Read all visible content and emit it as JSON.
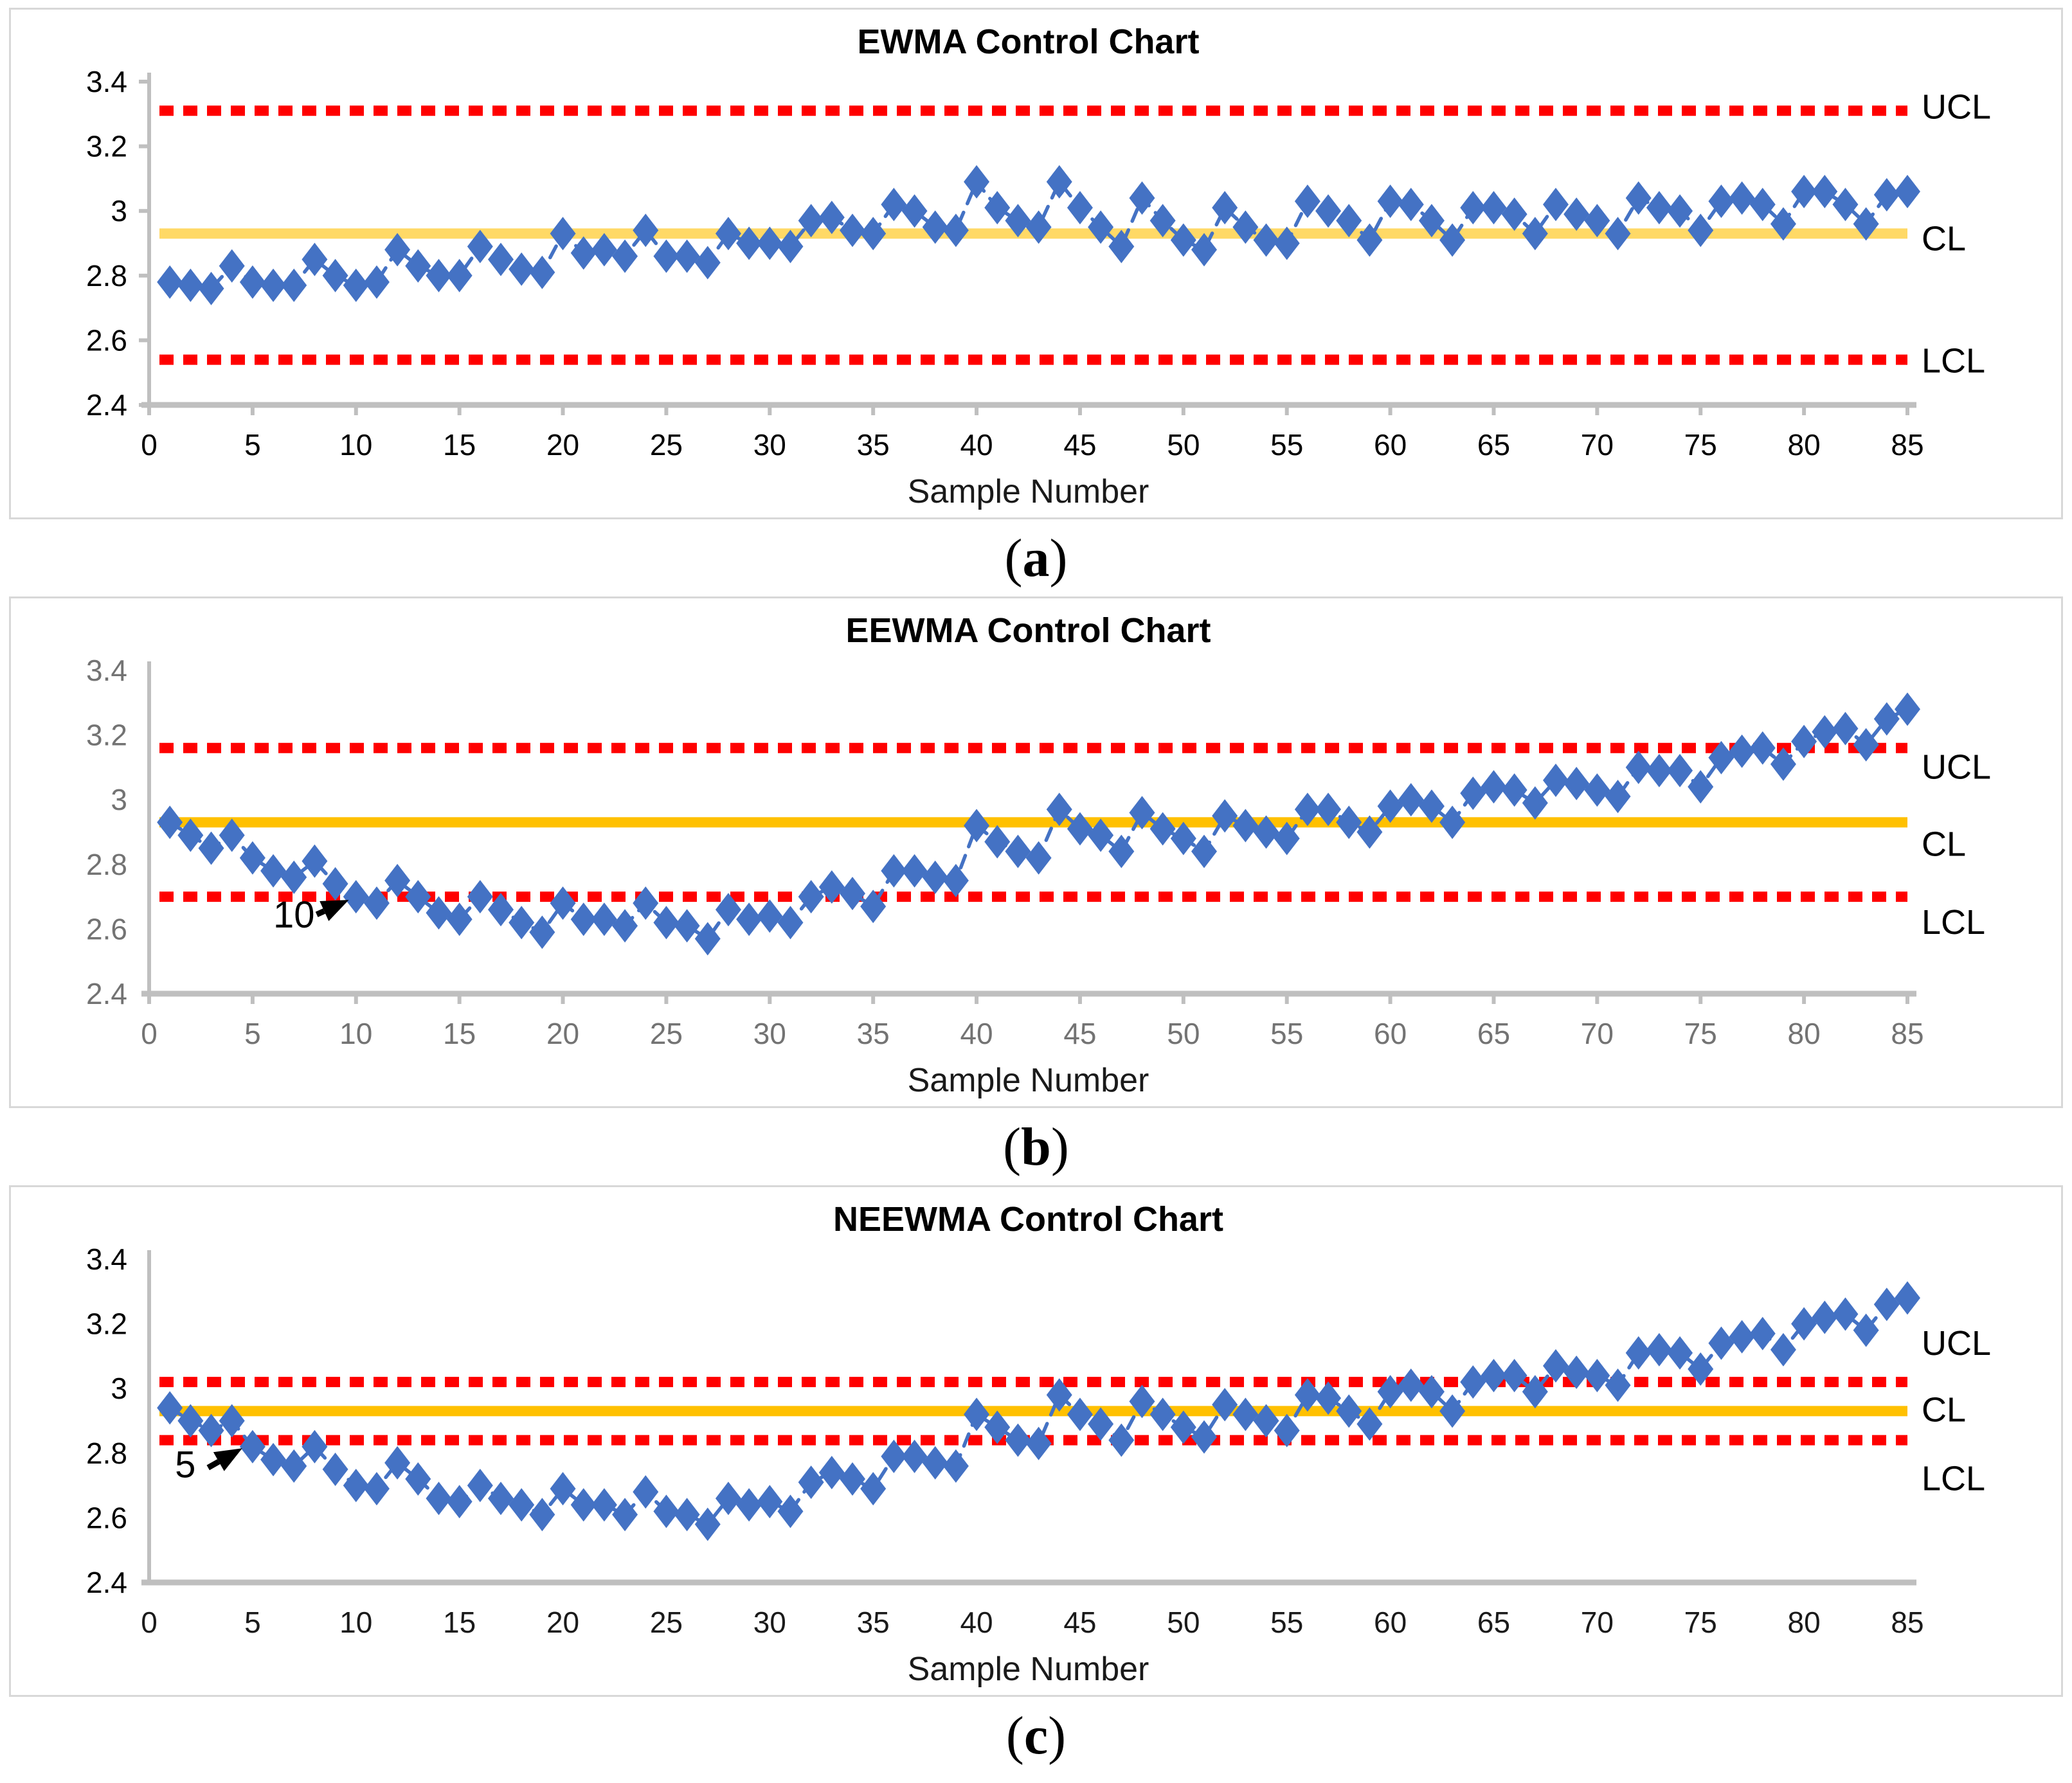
{
  "captions": [
    {
      "open": "(",
      "letter": "a",
      "close": ")"
    },
    {
      "open": "(",
      "letter": "b",
      "close": ")"
    },
    {
      "open": "(",
      "letter": "c",
      "close": ")"
    }
  ],
  "colors": {
    "series_blue": "#4472C4",
    "control_red": "#FF0000",
    "axis_gray": "#BFBFBF",
    "panel_border": "#D8D8D8"
  },
  "chart_data": [
    {
      "type": "line",
      "title": "EWMA Control Chart",
      "xlabel": "Sample Number",
      "ylim": [
        2.4,
        3.4
      ],
      "xlim": [
        0,
        85
      ],
      "grid": false,
      "legend": "none",
      "y_tick_labels": [
        "3.4",
        "3.2",
        "3",
        "2.8",
        "2.6",
        "2.4"
      ],
      "x_tick_labels": [
        "0",
        "5",
        "10",
        "15",
        "20",
        "25",
        "30",
        "35",
        "40",
        "45",
        "50",
        "55",
        "60",
        "65",
        "70",
        "75",
        "80",
        "85"
      ],
      "x_tick_marks": true,
      "y_tick_marks": true,
      "tick_color_y": "#000000",
      "tick_color_x": "#000000",
      "x_tick_font": "sans",
      "label_color": "#1a1a1a",
      "series": [
        {
          "name": "EWMA",
          "marker": "diamond",
          "color": "#4472C4",
          "x_start": 1,
          "x_step": 1,
          "values": [
            2.78,
            2.77,
            2.76,
            2.83,
            2.78,
            2.77,
            2.77,
            2.85,
            2.8,
            2.77,
            2.78,
            2.88,
            2.83,
            2.8,
            2.8,
            2.89,
            2.85,
            2.82,
            2.81,
            2.93,
            2.87,
            2.88,
            2.86,
            2.94,
            2.86,
            2.86,
            2.84,
            2.93,
            2.9,
            2.9,
            2.89,
            2.97,
            2.98,
            2.94,
            2.93,
            3.02,
            3.0,
            2.95,
            2.94,
            3.09,
            3.01,
            2.97,
            2.95,
            3.09,
            3.01,
            2.95,
            2.89,
            3.04,
            2.97,
            2.91,
            2.88,
            3.01,
            2.95,
            2.91,
            2.9,
            3.03,
            3.0,
            2.97,
            2.91,
            3.03,
            3.02,
            2.97,
            2.91,
            3.01,
            3.01,
            2.99,
            2.93,
            3.02,
            2.99,
            2.97,
            2.93,
            3.04,
            3.01,
            3.0,
            2.94,
            3.03,
            3.04,
            3.02,
            2.96,
            3.06,
            3.06,
            3.02,
            2.96,
            3.05,
            3.06
          ]
        }
      ],
      "control_lines": [
        {
          "label": "UCL",
          "value": 3.31,
          "style": "dotted",
          "color": "#FF0000",
          "label_dy": 12
        },
        {
          "label": "CL",
          "value": 2.93,
          "style": "solid",
          "color": "#FFD966",
          "label_dy": 26
        },
        {
          "label": "LCL",
          "value": 2.54,
          "style": "dotted",
          "color": "#FF0000",
          "label_dy": 20
        }
      ],
      "annotation": null
    },
    {
      "type": "line",
      "title": "EEWMA Control Chart",
      "xlabel": "Sample Number",
      "ylim": [
        2.4,
        3.4
      ],
      "xlim": [
        0,
        85
      ],
      "grid": false,
      "legend": "none",
      "y_tick_labels": [
        "3.4",
        "3.2",
        "3",
        "2.8",
        "2.6",
        "2.4"
      ],
      "x_tick_labels": [
        "0",
        "5",
        "10",
        "15",
        "20",
        "25",
        "30",
        "35",
        "40",
        "45",
        "50",
        "55",
        "60",
        "65",
        "70",
        "75",
        "80",
        "85"
      ],
      "x_tick_marks": true,
      "y_tick_marks": false,
      "tick_color_y": "#737373",
      "tick_color_x": "#737373",
      "x_tick_font": "sans",
      "label_color": "#1a1a1a",
      "series": [
        {
          "name": "EEWMA",
          "marker": "diamond",
          "color": "#4472C4",
          "x_start": 1,
          "x_step": 1,
          "values": [
            2.93,
            2.89,
            2.85,
            2.89,
            2.82,
            2.78,
            2.76,
            2.81,
            2.74,
            2.7,
            2.68,
            2.75,
            2.7,
            2.65,
            2.63,
            2.7,
            2.66,
            2.62,
            2.59,
            2.68,
            2.63,
            2.63,
            2.61,
            2.68,
            2.62,
            2.61,
            2.57,
            2.66,
            2.63,
            2.64,
            2.62,
            2.7,
            2.73,
            2.71,
            2.67,
            2.78,
            2.78,
            2.76,
            2.75,
            2.92,
            2.87,
            2.84,
            2.82,
            2.97,
            2.91,
            2.89,
            2.84,
            2.96,
            2.91,
            2.88,
            2.84,
            2.95,
            2.92,
            2.9,
            2.88,
            2.97,
            2.97,
            2.93,
            2.9,
            2.98,
            3.0,
            2.98,
            2.93,
            3.02,
            3.04,
            3.03,
            2.99,
            3.06,
            3.05,
            3.03,
            3.01,
            3.1,
            3.09,
            3.09,
            3.04,
            3.13,
            3.15,
            3.16,
            3.11,
            3.18,
            3.21,
            3.22,
            3.17,
            3.25,
            3.28
          ]
        }
      ],
      "control_lines": [
        {
          "label": "UCL",
          "value": 3.16,
          "style": "dotted",
          "color": "#FF0000",
          "label_dy": 48
        },
        {
          "label": "CL",
          "value": 2.93,
          "style": "solid",
          "color": "#FFC000",
          "label_dy": 52
        },
        {
          "label": "LCL",
          "value": 2.7,
          "style": "dotted",
          "color": "#FF0000",
          "label_dy": 58
        }
      ],
      "annotation": {
        "text": "10",
        "text_pos": [
          7.0,
          2.605
        ],
        "arrow_from": [
          8.1,
          2.645
        ],
        "arrow_to": [
          9.65,
          2.69
        ]
      }
    },
    {
      "type": "line",
      "title": "NEEWMA Control Chart",
      "xlabel": "Sample Number",
      "ylim": [
        2.4,
        3.4
      ],
      "xlim": [
        0,
        85
      ],
      "grid": false,
      "legend": "none",
      "y_tick_labels": [
        "3.4",
        "3.2",
        "3",
        "2.8",
        "2.6",
        "2.4"
      ],
      "x_tick_labels": [
        "0",
        "5",
        "10",
        "15",
        "20",
        "25",
        "30",
        "35",
        "40",
        "45",
        "50",
        "55",
        "60",
        "65",
        "70",
        "75",
        "80",
        "85"
      ],
      "x_tick_marks": false,
      "y_tick_marks": false,
      "tick_color_y": "#000000",
      "tick_color_x": "#1a1a1a",
      "x_tick_font": "serif",
      "label_color": "#1a1a1a",
      "series": [
        {
          "name": "NEEWMA",
          "marker": "diamond",
          "color": "#4472C4",
          "x_start": 1,
          "x_step": 1,
          "values": [
            2.94,
            2.9,
            2.87,
            2.9,
            2.82,
            2.78,
            2.76,
            2.82,
            2.75,
            2.7,
            2.69,
            2.77,
            2.72,
            2.66,
            2.65,
            2.7,
            2.66,
            2.64,
            2.61,
            2.69,
            2.64,
            2.64,
            2.61,
            2.68,
            2.62,
            2.61,
            2.58,
            2.66,
            2.64,
            2.65,
            2.62,
            2.71,
            2.74,
            2.72,
            2.69,
            2.79,
            2.79,
            2.77,
            2.76,
            2.92,
            2.88,
            2.84,
            2.83,
            2.98,
            2.92,
            2.89,
            2.84,
            2.96,
            2.92,
            2.88,
            2.85,
            2.95,
            2.92,
            2.9,
            2.87,
            2.98,
            2.97,
            2.93,
            2.89,
            2.99,
            3.01,
            2.99,
            2.93,
            3.02,
            3.04,
            3.04,
            2.99,
            3.07,
            3.05,
            3.04,
            3.01,
            3.11,
            3.12,
            3.11,
            3.06,
            3.14,
            3.16,
            3.17,
            3.12,
            3.2,
            3.22,
            3.23,
            3.18,
            3.26,
            3.28
          ]
        }
      ],
      "control_lines": [
        {
          "label": "UCL",
          "value": 3.02,
          "style": "dotted",
          "color": "#FF0000",
          "label_dy": -42
        },
        {
          "label": "CL",
          "value": 2.93,
          "style": "solid",
          "color": "#FFC000",
          "label_dy": 16
        },
        {
          "label": "LCL",
          "value": 2.84,
          "style": "dotted",
          "color": "#FF0000",
          "label_dy": 78
        }
      ],
      "annotation": {
        "text": "5",
        "text_pos": [
          1.75,
          2.725
        ],
        "arrow_from": [
          2.85,
          2.755
        ],
        "arrow_to": [
          4.5,
          2.815
        ]
      }
    }
  ]
}
